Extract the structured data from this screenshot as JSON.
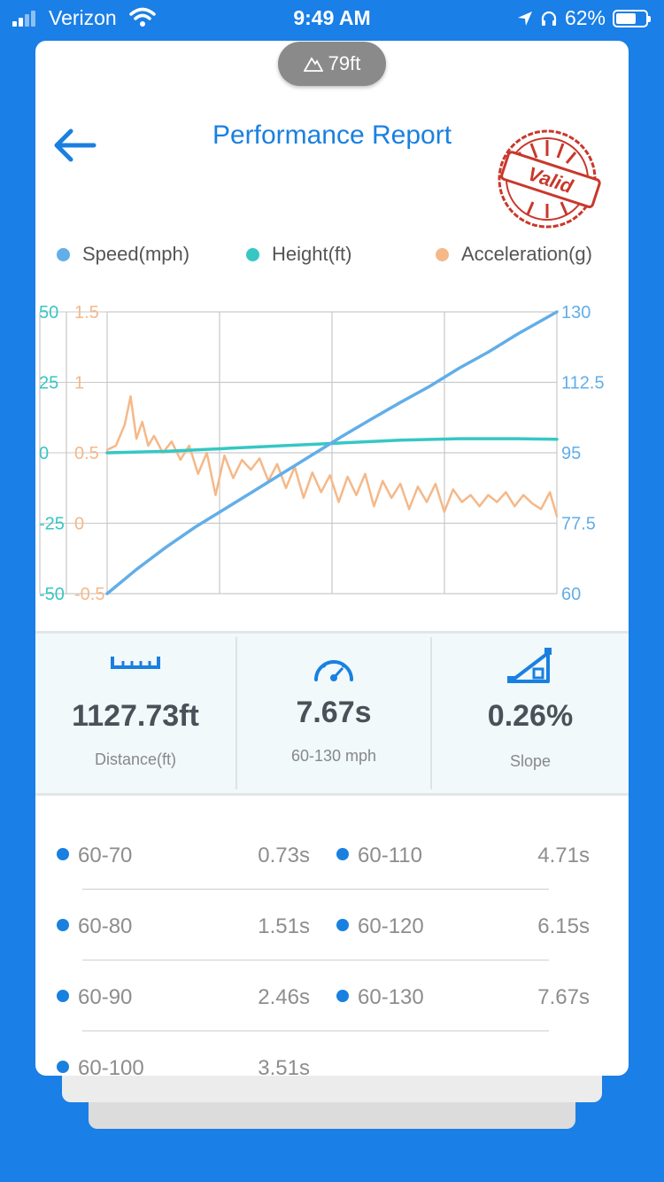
{
  "status_bar": {
    "carrier": "Verizon",
    "time": "9:49 AM",
    "battery": "62%"
  },
  "altitude_badge": "79ft",
  "header": {
    "title": "Performance Report",
    "stamp_text": "Valid"
  },
  "legend": [
    {
      "label": "Speed(mph)",
      "color": "#62aee8"
    },
    {
      "label": "Height(ft)",
      "color": "#36c7c4"
    },
    {
      "label": "Acceleration(g)",
      "color": "#f5b888"
    }
  ],
  "chart_data": {
    "type": "line",
    "x_range": [
      0,
      7.67
    ],
    "axes": {
      "height_left": {
        "ticks": [
          "50",
          "25",
          "0",
          "-25",
          "-50"
        ],
        "range": [
          -50,
          50
        ],
        "color": "#36c7c4"
      },
      "accel_left": {
        "ticks": [
          "1.5",
          "1",
          "0.5",
          "0",
          "-0.5"
        ],
        "range": [
          -0.5,
          1.5
        ],
        "color": "#f5b888"
      },
      "speed_right": {
        "ticks": [
          "130",
          "112.5",
          "95",
          "77.5",
          "60"
        ],
        "range": [
          60,
          130
        ],
        "color": "#62aee8"
      }
    },
    "grid": true,
    "series": [
      {
        "name": "Speed(mph)",
        "axis": "speed_right",
        "color": "#62aee8",
        "x": [
          0,
          0.5,
          1,
          1.5,
          2,
          2.5,
          3,
          3.5,
          4,
          4.5,
          5,
          5.5,
          6,
          6.5,
          7,
          7.67
        ],
        "y": [
          60,
          66,
          71.5,
          76.5,
          81,
          85.5,
          90,
          94.5,
          99,
          103.3,
          107.5,
          111.5,
          116,
          120,
          124.5,
          130
        ]
      },
      {
        "name": "Height(ft)",
        "axis": "height_left",
        "color": "#36c7c4",
        "x": [
          0,
          1,
          2,
          3,
          4,
          5,
          6,
          7,
          7.67
        ],
        "y": [
          0,
          0.5,
          1.5,
          2.5,
          3.5,
          4.5,
          5,
          5,
          4.8
        ]
      },
      {
        "name": "Acceleration(g)",
        "axis": "accel_left",
        "color": "#f5b888",
        "x": [
          0,
          0.15,
          0.3,
          0.4,
          0.5,
          0.6,
          0.7,
          0.8,
          0.95,
          1.1,
          1.25,
          1.4,
          1.55,
          1.7,
          1.85,
          2.0,
          2.15,
          2.3,
          2.45,
          2.6,
          2.75,
          2.9,
          3.05,
          3.2,
          3.35,
          3.5,
          3.65,
          3.8,
          3.95,
          4.1,
          4.25,
          4.4,
          4.55,
          4.7,
          4.85,
          5.0,
          5.15,
          5.3,
          5.45,
          5.6,
          5.75,
          5.9,
          6.05,
          6.2,
          6.35,
          6.5,
          6.65,
          6.8,
          6.95,
          7.1,
          7.25,
          7.4,
          7.55,
          7.67
        ],
        "y": [
          0.52,
          0.55,
          0.7,
          0.9,
          0.6,
          0.72,
          0.55,
          0.62,
          0.5,
          0.58,
          0.45,
          0.55,
          0.35,
          0.5,
          0.2,
          0.48,
          0.32,
          0.45,
          0.38,
          0.46,
          0.3,
          0.42,
          0.25,
          0.4,
          0.18,
          0.36,
          0.22,
          0.34,
          0.15,
          0.33,
          0.2,
          0.35,
          0.12,
          0.3,
          0.18,
          0.28,
          0.1,
          0.26,
          0.15,
          0.28,
          0.08,
          0.24,
          0.15,
          0.2,
          0.12,
          0.2,
          0.15,
          0.22,
          0.12,
          0.2,
          0.14,
          0.1,
          0.22,
          0.05
        ]
      }
    ]
  },
  "stats": [
    {
      "value": "1127.73ft",
      "label": "Distance(ft)",
      "icon": "ruler-icon"
    },
    {
      "value": "7.67s",
      "label": "60-130 mph",
      "icon": "speedometer-icon"
    },
    {
      "value": "0.26%",
      "label": "Slope",
      "icon": "slope-icon"
    }
  ],
  "splits": [
    {
      "range": "60-70",
      "time": "0.73s"
    },
    {
      "range": "60-110",
      "time": "4.71s"
    },
    {
      "range": "60-80",
      "time": "1.51s"
    },
    {
      "range": "60-120",
      "time": "6.15s"
    },
    {
      "range": "60-90",
      "time": "2.46s"
    },
    {
      "range": "60-130",
      "time": "7.67s"
    },
    {
      "range": "60-100",
      "time": "3.51s"
    }
  ]
}
